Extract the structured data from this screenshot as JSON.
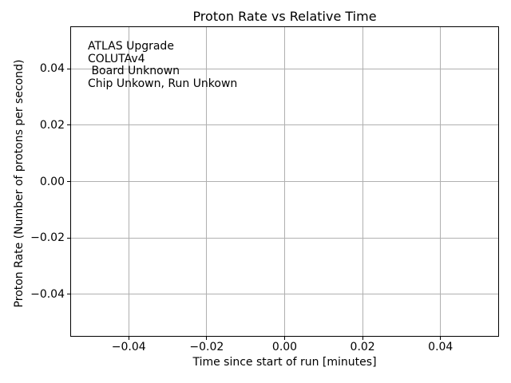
{
  "figure": {
    "background_color": "#ffffff",
    "text_color": "#000000",
    "spine_color": "#000000"
  },
  "chart_data": {
    "type": "scatter",
    "title": "Proton Rate vs Relative Time",
    "xlabel": "Time since start of run [minutes]",
    "ylabel": "Proton Rate (Number of protons per second)",
    "xlim": [
      -0.055,
      0.055
    ],
    "ylim": [
      -0.055,
      0.055
    ],
    "x_ticks": [
      -0.04,
      -0.02,
      0.0,
      0.02,
      0.04
    ],
    "x_tick_labels": [
      "−0.04",
      "−0.02",
      "0.00",
      "0.02",
      "0.04"
    ],
    "y_ticks": [
      0.04,
      0.02,
      0.0,
      -0.02,
      -0.04
    ],
    "y_tick_labels": [
      "0.04",
      "0.02",
      "0.00",
      "−0.02",
      "−0.04"
    ],
    "grid": true,
    "grid_color": "#b0b0b0",
    "tick_color": "#000000",
    "series": [],
    "annotation": {
      "lines": [
        "ATLAS Upgrade",
        "COLUTAv4",
        " Board Unknown",
        "Chip Unkown, Run Unkown"
      ]
    }
  }
}
